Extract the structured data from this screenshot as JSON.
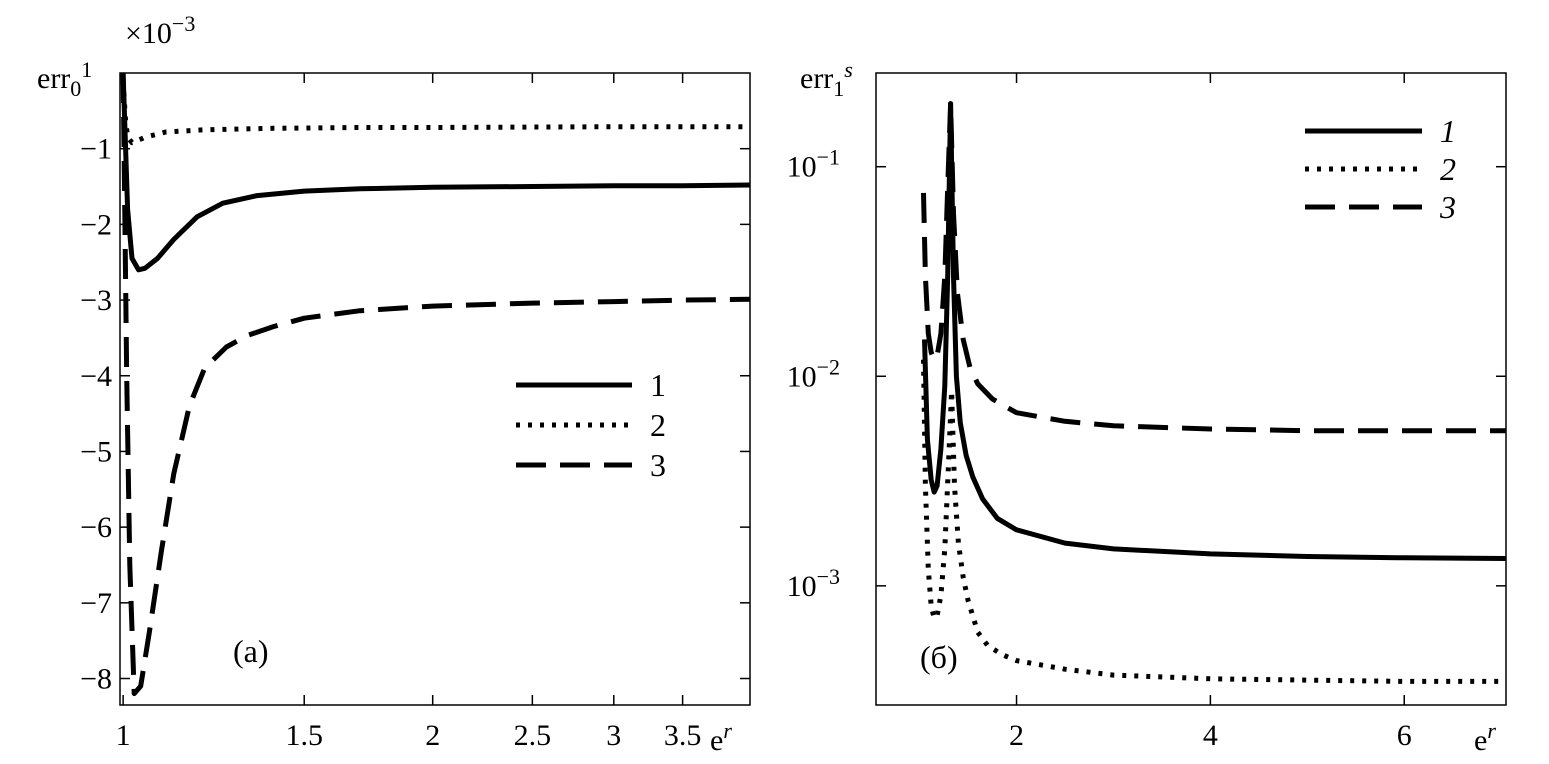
{
  "chart_data": [
    {
      "type": "line",
      "panel_label": "(a)",
      "ylabel": "err",
      "ylabel_sub": "0",
      "ylabel_sup": "1",
      "xlabel": "e",
      "xlabel_sup": "r",
      "multiplier_label": "×10",
      "multiplier_exp": "−3",
      "x_transform": "log",
      "y_scale": "linear",
      "xlim": [
        0.993,
        4.07
      ],
      "ylim": [
        -8.35,
        0.0
      ],
      "xticks": [
        1,
        1.5,
        2,
        2.5,
        3,
        3.5
      ],
      "xtick_labels": [
        "1",
        "1.5",
        "2",
        "2.5",
        "3",
        "3.5"
      ],
      "yticks": [
        -1,
        -2,
        -3,
        -4,
        -5,
        -6,
        -7,
        -8
      ],
      "ytick_labels": [
        "−1",
        "−2",
        "−3",
        "−4",
        "−5",
        "−6",
        "−7",
        "−8"
      ],
      "legend_position": "center-right",
      "legend_labels": [
        "1",
        "2",
        "3"
      ],
      "series": [
        {
          "name": "1",
          "style": "solid",
          "x": [
            1.0,
            1.01,
            1.02,
            1.035,
            1.05,
            1.08,
            1.12,
            1.18,
            1.25,
            1.35,
            1.5,
            1.7,
            2.0,
            2.5,
            3.0,
            3.5,
            4.07
          ],
          "y": [
            0.0,
            -1.8,
            -2.45,
            -2.6,
            -2.58,
            -2.45,
            -2.2,
            -1.9,
            -1.72,
            -1.62,
            -1.56,
            -1.53,
            -1.51,
            -1.5,
            -1.49,
            -1.49,
            -1.48
          ]
        },
        {
          "name": "2",
          "style": "dotted",
          "x": [
            1.0,
            1.005,
            1.01,
            1.02,
            1.03,
            1.05,
            1.1,
            1.2,
            1.4,
            1.7,
            2.0,
            3.0,
            4.07
          ],
          "y": [
            -0.1,
            -0.6,
            -0.85,
            -0.92,
            -0.9,
            -0.85,
            -0.78,
            -0.75,
            -0.73,
            -0.72,
            -0.72,
            -0.71,
            -0.71
          ]
        },
        {
          "name": "3",
          "style": "dashed",
          "x": [
            1.0,
            1.003,
            1.008,
            1.015,
            1.025,
            1.04,
            1.06,
            1.09,
            1.12,
            1.16,
            1.2,
            1.26,
            1.32,
            1.4,
            1.5,
            1.7,
            2.0,
            2.5,
            3.0,
            3.5,
            4.07
          ],
          "y": [
            0.0,
            -1.5,
            -4.0,
            -6.5,
            -8.2,
            -8.1,
            -7.4,
            -6.3,
            -5.3,
            -4.4,
            -3.9,
            -3.62,
            -3.47,
            -3.35,
            -3.24,
            -3.14,
            -3.08,
            -3.04,
            -3.02,
            -3.0,
            -2.99
          ]
        }
      ]
    },
    {
      "type": "line",
      "panel_label": "(б)",
      "ylabel": "err",
      "ylabel_sub": "1",
      "ylabel_sup": "s",
      "xlabel": "e",
      "xlabel_sup": "r",
      "x_transform": "linear",
      "y_scale": "log",
      "xlim": [
        0.55,
        7.05
      ],
      "ylim": [
        0.00027,
        0.28
      ],
      "xticks": [
        2,
        4,
        6
      ],
      "xtick_labels": [
        "2",
        "4",
        "6"
      ],
      "yticks": [
        0.1,
        0.01,
        0.001
      ],
      "ytick_labels_base": [
        "10",
        "10",
        "10"
      ],
      "ytick_labels_exp": [
        "−1",
        "−2",
        "−3"
      ],
      "legend_position": "top-right",
      "legend_labels": [
        "1",
        "2",
        "3"
      ],
      "series": [
        {
          "name": "1",
          "style": "solid",
          "x": [
            1.05,
            1.08,
            1.12,
            1.15,
            1.18,
            1.22,
            1.26,
            1.29,
            1.32,
            1.35,
            1.38,
            1.42,
            1.48,
            1.55,
            1.65,
            1.8,
            2.0,
            2.5,
            3.0,
            4.0,
            5.0,
            6.0,
            7.05
          ],
          "y": [
            0.015,
            0.005,
            0.0032,
            0.0028,
            0.003,
            0.0045,
            0.009,
            0.03,
            0.2,
            0.03,
            0.01,
            0.006,
            0.0042,
            0.0033,
            0.0026,
            0.0021,
            0.00185,
            0.0016,
            0.0015,
            0.00142,
            0.00138,
            0.00136,
            0.00135
          ]
        },
        {
          "name": "2",
          "style": "dotted",
          "x": [
            1.04,
            1.06,
            1.09,
            1.12,
            1.15,
            1.18,
            1.22,
            1.26,
            1.3,
            1.33,
            1.36,
            1.4,
            1.45,
            1.5,
            1.6,
            1.7,
            1.85,
            2.0,
            2.5,
            3.0,
            4.0,
            5.0,
            6.0,
            7.05
          ],
          "y": [
            0.012,
            0.003,
            0.0012,
            0.0008,
            0.0007,
            0.00072,
            0.0009,
            0.0015,
            0.004,
            0.0085,
            0.003,
            0.0016,
            0.0011,
            0.00085,
            0.0006,
            0.00052,
            0.00047,
            0.00044,
            0.0004,
            0.000375,
            0.00036,
            0.000355,
            0.00035,
            0.00035
          ]
        },
        {
          "name": "3",
          "style": "dashed",
          "x": [
            1.04,
            1.06,
            1.09,
            1.12,
            1.15,
            1.18,
            1.22,
            1.26,
            1.29,
            1.32,
            1.35,
            1.39,
            1.45,
            1.52,
            1.6,
            1.75,
            2.0,
            2.5,
            3.0,
            4.0,
            5.0,
            6.0,
            7.05
          ],
          "y": [
            0.075,
            0.03,
            0.016,
            0.013,
            0.012,
            0.0125,
            0.016,
            0.03,
            0.08,
            0.2,
            0.06,
            0.025,
            0.015,
            0.011,
            0.0092,
            0.0078,
            0.0067,
            0.0061,
            0.0058,
            0.0056,
            0.0055,
            0.0055,
            0.0055
          ]
        }
      ]
    }
  ]
}
